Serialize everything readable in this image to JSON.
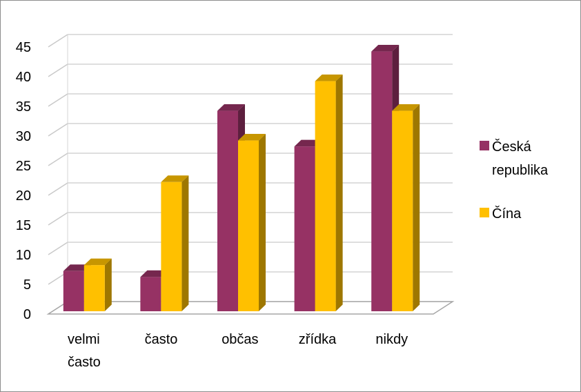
{
  "chart_data": {
    "type": "bar",
    "subtype": "3d-clustered-column",
    "categories": [
      "velmi často",
      "často",
      "občas",
      "zřídka",
      "nikdy"
    ],
    "series": [
      {
        "name": "Česká republika",
        "color": "#963264",
        "values": [
          7,
          6,
          34,
          28,
          44
        ]
      },
      {
        "name": "Čína",
        "color": "#FFC000",
        "values": [
          8,
          22,
          29,
          39,
          34
        ]
      }
    ],
    "ylim": [
      0,
      45
    ],
    "yticks": [
      0,
      5,
      10,
      15,
      20,
      25,
      30,
      35,
      40,
      45
    ],
    "grid": true,
    "legend": "right",
    "title": "",
    "xlabel": "",
    "ylabel": ""
  }
}
